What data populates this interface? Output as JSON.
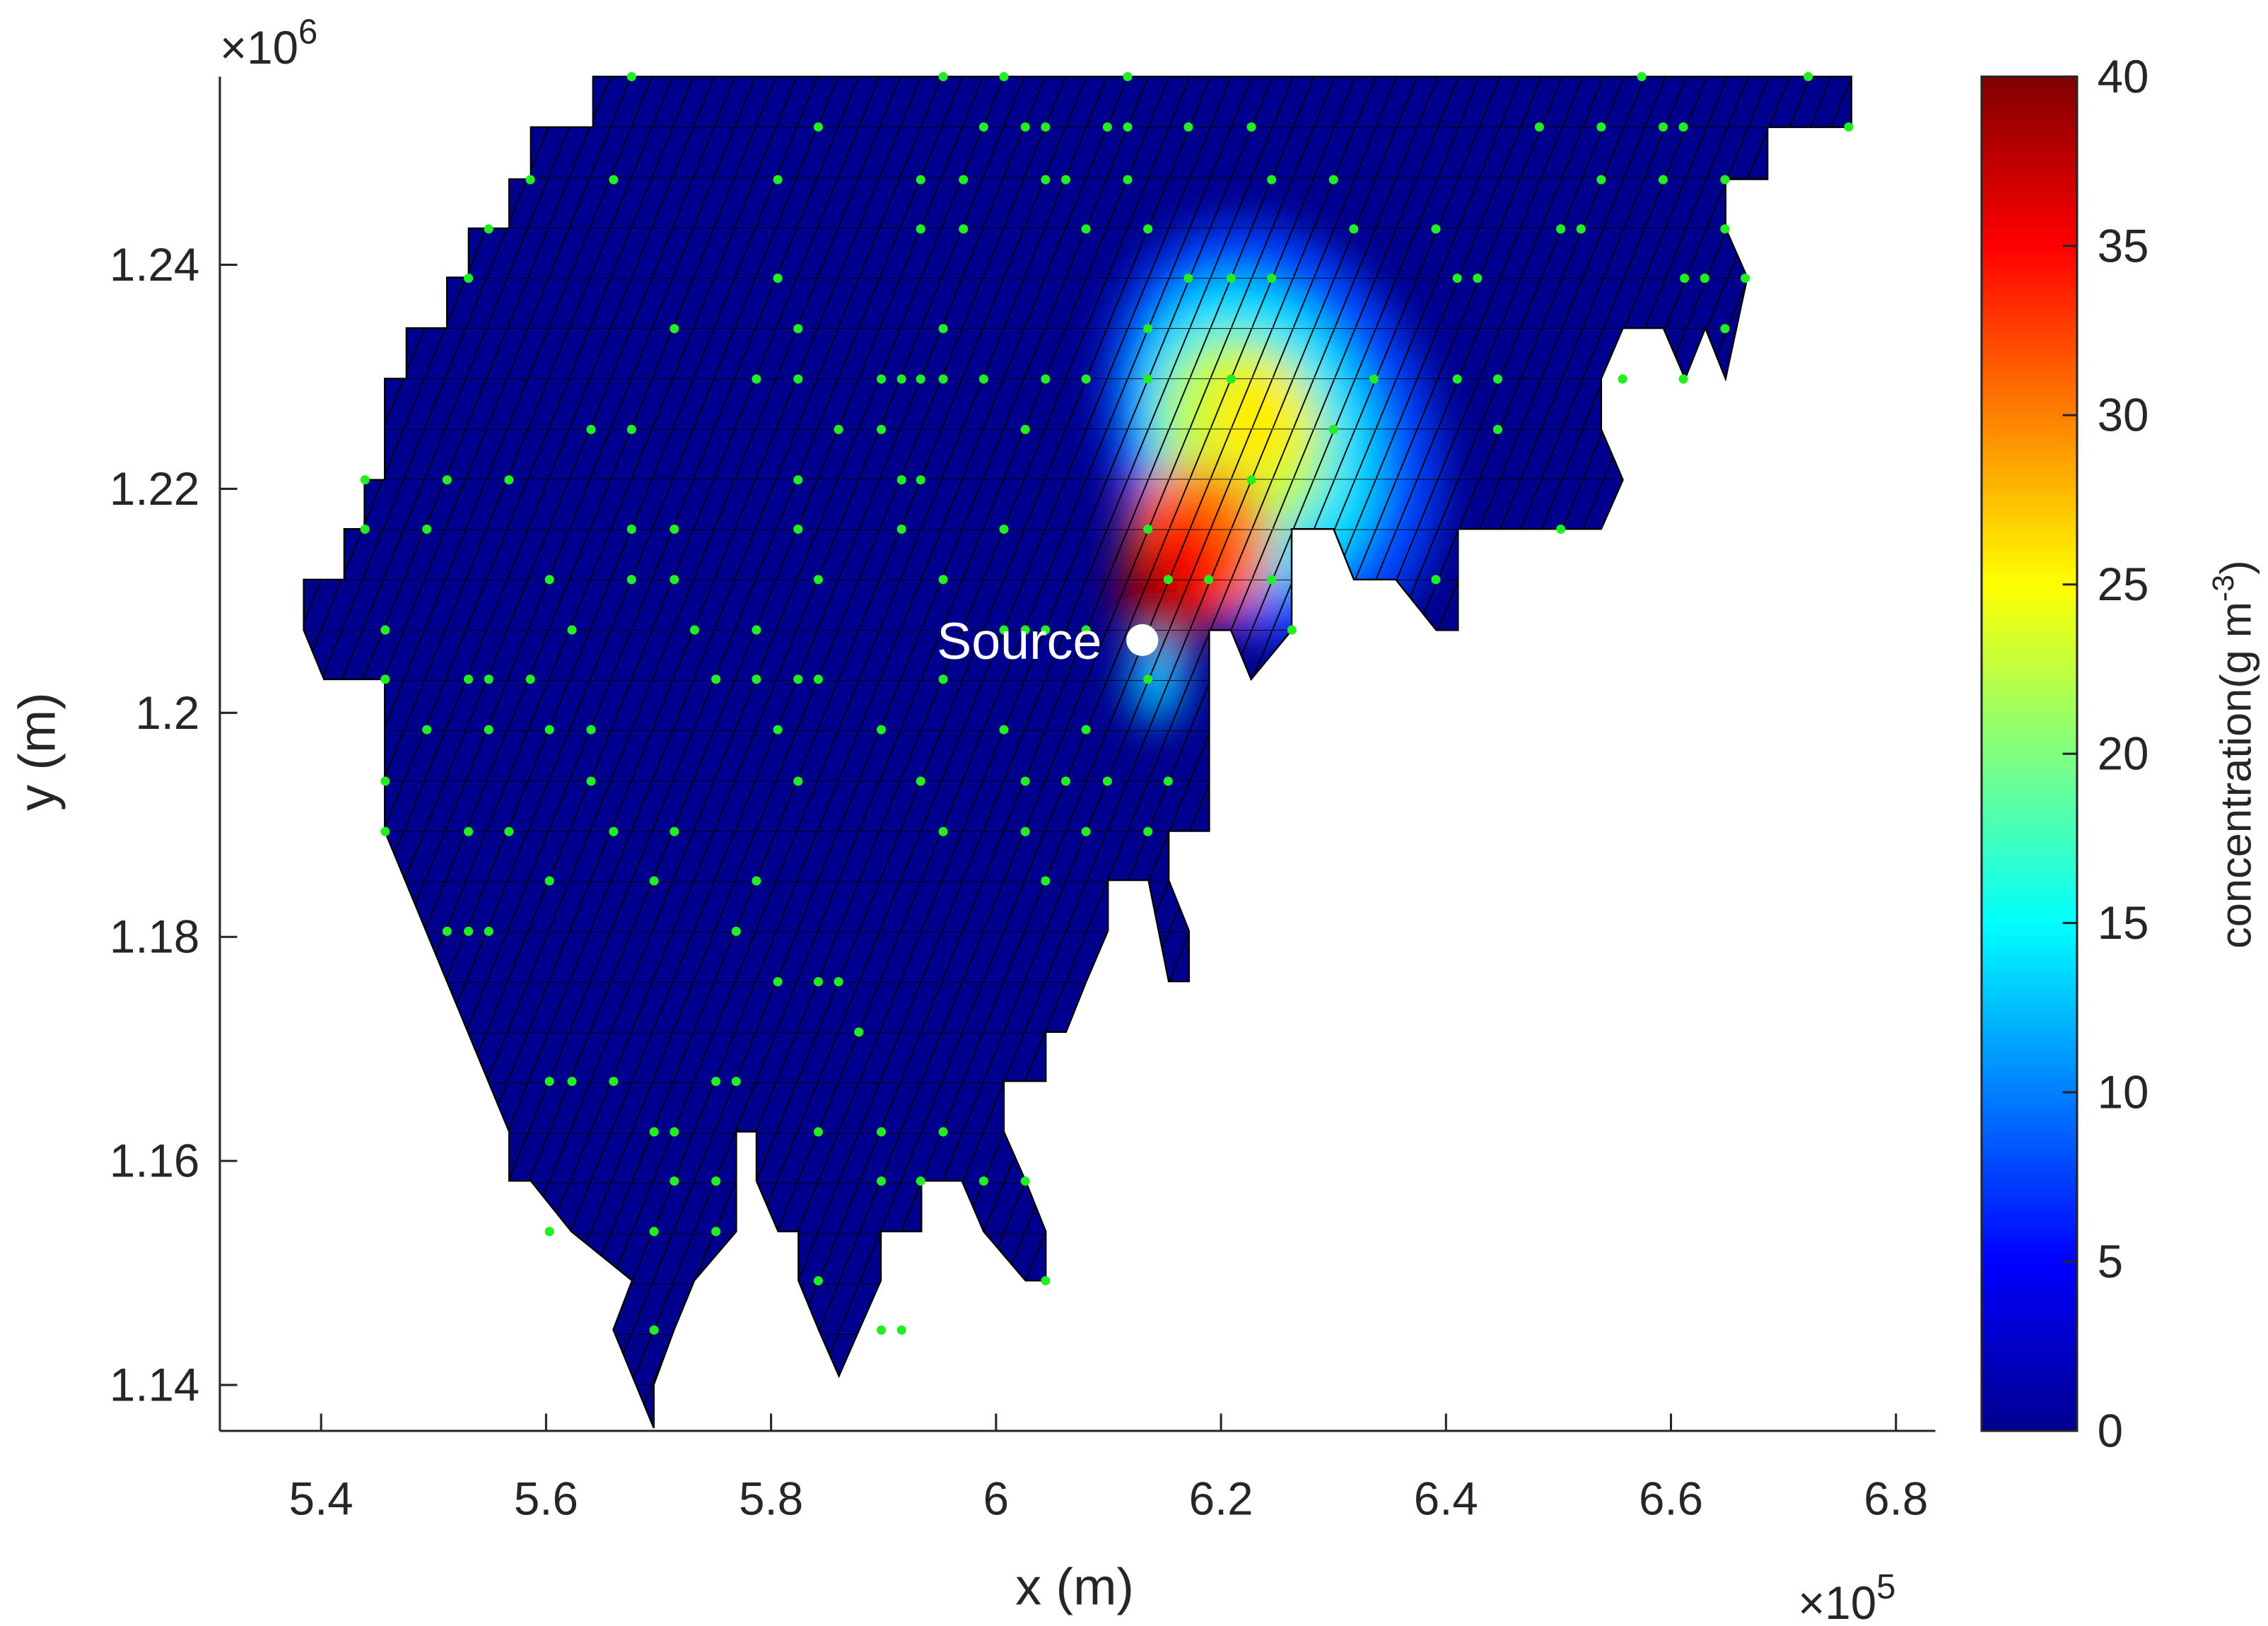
{
  "chart_data": {
    "type": "scatter",
    "xlabel": "x (m)",
    "ylabel": "y (m)",
    "x_scale": {
      "base": "×10",
      "exponent": "5"
    },
    "y_scale": {
      "base": "×10",
      "exponent": "6"
    },
    "xlim": [
      5.31,
      6.835
    ],
    "ylim": [
      1.1359,
      1.2568
    ],
    "xticks": [
      5.4,
      5.6,
      5.8,
      6,
      6.2,
      6.4,
      6.6,
      6.8
    ],
    "yticks": [
      1.14,
      1.16,
      1.18,
      1.2,
      1.22,
      1.24
    ],
    "colormap": "jet",
    "clim": [
      0,
      40
    ],
    "cticks": [
      0,
      5,
      10,
      15,
      20,
      25,
      30,
      35,
      40
    ],
    "colorbar_label": {
      "text": "concentration(g m",
      "sup": "-3",
      "end": ")"
    },
    "source": {
      "label": "Source",
      "x": 6.13,
      "y": 1.2065,
      "color": "#ffffff"
    },
    "points": {
      "color": "#22ee22",
      "x": [
        5.676,
        5.953,
        6.007,
        6.117,
        6.574,
        6.722,
        5.842,
        5.989,
        6.026,
        6.044,
        6.099,
        6.117,
        6.171,
        6.227,
        6.483,
        6.538,
        6.593,
        6.611,
        6.758,
        5.586,
        5.66,
        5.806,
        5.933,
        5.971,
        6.044,
        6.062,
        6.117,
        6.245,
        6.3,
        6.538,
        6.593,
        6.648,
        5.549,
        5.933,
        5.971,
        6.08,
        6.135,
        6.318,
        6.391,
        6.502,
        6.52,
        6.648,
        5.531,
        5.806,
        6.171,
        6.209,
        6.245,
        6.41,
        6.428,
        6.612,
        6.63,
        6.666,
        5.714,
        5.824,
        5.953,
        6.135,
        6.648,
        5.787,
        5.824,
        5.898,
        5.916,
        5.933,
        5.953,
        5.989,
        6.044,
        6.08,
        6.135,
        6.209,
        6.336,
        6.41,
        6.446,
        6.557,
        6.611,
        5.64,
        5.676,
        5.86,
        5.898,
        6.026,
        6.3,
        6.446,
        5.439,
        5.512,
        5.567,
        5.824,
        5.916,
        5.933,
        6.227,
        5.439,
        5.494,
        5.676,
        5.714,
        5.824,
        5.916,
        6.007,
        6.135,
        6.502,
        5.603,
        5.676,
        5.714,
        5.842,
        5.953,
        6.153,
        6.189,
        6.245,
        6.391,
        5.457,
        5.623,
        5.732,
        5.787,
        6.007,
        6.026,
        6.044,
        6.08,
        6.135,
        6.263,
        5.457,
        5.531,
        5.549,
        5.586,
        5.751,
        5.787,
        5.824,
        5.842,
        5.953,
        6.135,
        5.494,
        5.549,
        5.603,
        5.64,
        5.806,
        5.898,
        6.007,
        6.08,
        5.457,
        5.64,
        5.824,
        5.933,
        6.026,
        6.062,
        6.099,
        6.153,
        5.457,
        5.531,
        5.567,
        5.66,
        5.714,
        5.953,
        6.026,
        6.08,
        6.135,
        5.603,
        5.696,
        5.787,
        6.044,
        5.512,
        5.531,
        5.549,
        5.769,
        5.806,
        5.842,
        5.86,
        5.878,
        5.603,
        5.623,
        5.66,
        5.751,
        5.769,
        5.696,
        5.714,
        5.842,
        5.898,
        5.953,
        5.714,
        5.751,
        5.898,
        5.933,
        5.989,
        6.026,
        5.603,
        5.696,
        5.751,
        5.842,
        6.044,
        5.696,
        5.898,
        5.916
      ],
      "y": [
        1.2568,
        1.2568,
        1.2568,
        1.2568,
        1.2568,
        1.2568,
        1.2523,
        1.2523,
        1.2523,
        1.2523,
        1.2523,
        1.2523,
        1.2523,
        1.2523,
        1.2523,
        1.2523,
        1.2523,
        1.2523,
        1.2523,
        1.2476,
        1.2476,
        1.2476,
        1.2476,
        1.2476,
        1.2476,
        1.2476,
        1.2476,
        1.2476,
        1.2476,
        1.2476,
        1.2476,
        1.2476,
        1.2432,
        1.2432,
        1.2432,
        1.2432,
        1.2432,
        1.2432,
        1.2432,
        1.2432,
        1.2432,
        1.2432,
        1.2388,
        1.2388,
        1.2388,
        1.2388,
        1.2388,
        1.2388,
        1.2388,
        1.2388,
        1.2388,
        1.2388,
        1.2343,
        1.2343,
        1.2343,
        1.2343,
        1.2343,
        1.2298,
        1.2298,
        1.2298,
        1.2298,
        1.2298,
        1.2298,
        1.2298,
        1.2298,
        1.2298,
        1.2298,
        1.2298,
        1.2298,
        1.2298,
        1.2298,
        1.2298,
        1.2298,
        1.2253,
        1.2253,
        1.2253,
        1.2253,
        1.2253,
        1.2253,
        1.2253,
        1.2208,
        1.2208,
        1.2208,
        1.2208,
        1.2208,
        1.2208,
        1.2208,
        1.2164,
        1.2164,
        1.2164,
        1.2164,
        1.2164,
        1.2164,
        1.2164,
        1.2164,
        1.2164,
        1.2119,
        1.2119,
        1.2119,
        1.2119,
        1.2119,
        1.2119,
        1.2119,
        1.2119,
        1.2119,
        1.2074,
        1.2074,
        1.2074,
        1.2074,
        1.2074,
        1.2074,
        1.2074,
        1.2074,
        1.2074,
        1.2074,
        1.203,
        1.203,
        1.203,
        1.203,
        1.203,
        1.203,
        1.203,
        1.203,
        1.203,
        1.203,
        1.1985,
        1.1985,
        1.1985,
        1.1985,
        1.1985,
        1.1985,
        1.1985,
        1.1985,
        1.1939,
        1.1939,
        1.1939,
        1.1939,
        1.1939,
        1.1939,
        1.1939,
        1.1939,
        1.1894,
        1.1894,
        1.1894,
        1.1894,
        1.1894,
        1.1894,
        1.1894,
        1.1894,
        1.1894,
        1.185,
        1.185,
        1.185,
        1.185,
        1.1805,
        1.1805,
        1.1805,
        1.1805,
        1.176,
        1.176,
        1.176,
        1.1715,
        1.1671,
        1.1671,
        1.1671,
        1.1671,
        1.1671,
        1.1626,
        1.1626,
        1.1626,
        1.1626,
        1.1626,
        1.1582,
        1.1582,
        1.1582,
        1.1582,
        1.1582,
        1.1582,
        1.1537,
        1.1537,
        1.1537,
        1.1493,
        1.1493,
        1.1449,
        1.1449,
        1.1449
      ]
    }
  }
}
